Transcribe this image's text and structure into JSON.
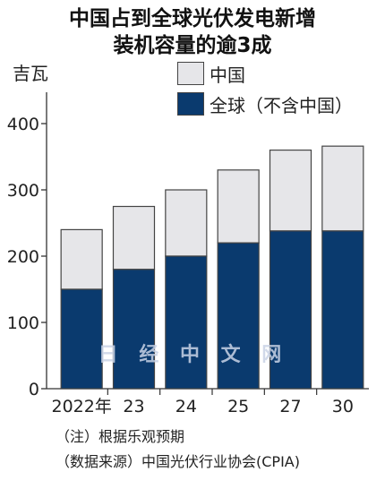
{
  "title_lines": [
    "中国占到全球光伏发电新增",
    "装机容量的逾3成"
  ],
  "watermark": "日 经 中 文 网",
  "notes": [
    "（注）根据乐观预期",
    "（数据来源）中国光伏行业协会(CPIA)"
  ],
  "colors": {
    "china": "#e6e6e9",
    "rest": "#0a3a6e",
    "axis": "#333333",
    "outline": "#444444"
  },
  "chart_data": {
    "type": "bar",
    "stacked": true,
    "ylabel": "吉瓦",
    "categories": [
      "2022年",
      "23",
      "24",
      "25",
      "27",
      "30"
    ],
    "series": [
      {
        "name": "全球（不含中国）",
        "values": [
          150,
          180,
          200,
          220,
          238,
          238
        ]
      },
      {
        "name": "中国",
        "values": [
          90,
          95,
          100,
          110,
          122,
          128
        ]
      }
    ],
    "totals": [
      240,
      275,
      300,
      330,
      360,
      366
    ],
    "ylim": [
      0,
      450
    ],
    "yticks": [
      0,
      100,
      200,
      300,
      400
    ],
    "grid": false,
    "legend": "top-right"
  }
}
